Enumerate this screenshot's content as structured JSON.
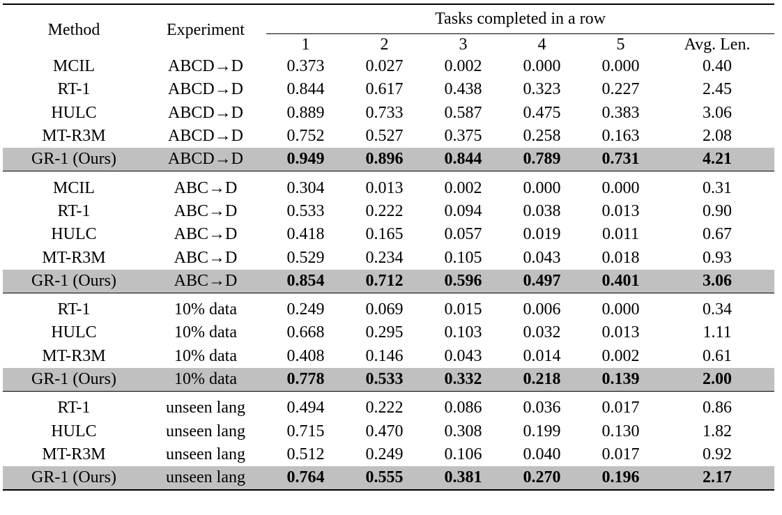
{
  "header": {
    "method": "Method",
    "experiment": "Experiment",
    "group": "Tasks completed in a row",
    "cols": [
      "1",
      "2",
      "3",
      "4",
      "5",
      "Avg. Len."
    ]
  },
  "sections": [
    {
      "rows": [
        {
          "method": "MCIL",
          "experiment": "ABCD→D",
          "values": [
            "0.373",
            "0.027",
            "0.002",
            "0.000",
            "0.000"
          ],
          "avg": "0.40"
        },
        {
          "method": "RT-1",
          "experiment": "ABCD→D",
          "values": [
            "0.844",
            "0.617",
            "0.438",
            "0.323",
            "0.227"
          ],
          "avg": "2.45"
        },
        {
          "method": "HULC",
          "experiment": "ABCD→D",
          "values": [
            "0.889",
            "0.733",
            "0.587",
            "0.475",
            "0.383"
          ],
          "avg": "3.06"
        },
        {
          "method": "MT-R3M",
          "experiment": "ABCD→D",
          "values": [
            "0.752",
            "0.527",
            "0.375",
            "0.258",
            "0.163"
          ],
          "avg": "2.08"
        },
        {
          "method": "GR-1 (Ours)",
          "experiment": "ABCD→D",
          "values": [
            "0.949",
            "0.896",
            "0.844",
            "0.789",
            "0.731"
          ],
          "avg": "4.21"
        }
      ]
    },
    {
      "rows": [
        {
          "method": "MCIL",
          "experiment": "ABC→D",
          "values": [
            "0.304",
            "0.013",
            "0.002",
            "0.000",
            "0.000"
          ],
          "avg": "0.31"
        },
        {
          "method": "RT-1",
          "experiment": "ABC→D",
          "values": [
            "0.533",
            "0.222",
            "0.094",
            "0.038",
            "0.013"
          ],
          "avg": "0.90"
        },
        {
          "method": "HULC",
          "experiment": "ABC→D",
          "values": [
            "0.418",
            "0.165",
            "0.057",
            "0.019",
            "0.011"
          ],
          "avg": "0.67"
        },
        {
          "method": "MT-R3M",
          "experiment": "ABC→D",
          "values": [
            "0.529",
            "0.234",
            "0.105",
            "0.043",
            "0.018"
          ],
          "avg": "0.93"
        },
        {
          "method": "GR-1 (Ours)",
          "experiment": "ABC→D",
          "values": [
            "0.854",
            "0.712",
            "0.596",
            "0.497",
            "0.401"
          ],
          "avg": "3.06"
        }
      ]
    },
    {
      "rows": [
        {
          "method": "RT-1",
          "experiment": "10% data",
          "values": [
            "0.249",
            "0.069",
            "0.015",
            "0.006",
            "0.000"
          ],
          "avg": "0.34"
        },
        {
          "method": "HULC",
          "experiment": "10% data",
          "values": [
            "0.668",
            "0.295",
            "0.103",
            "0.032",
            "0.013"
          ],
          "avg": "1.11"
        },
        {
          "method": "MT-R3M",
          "experiment": "10% data",
          "values": [
            "0.408",
            "0.146",
            "0.043",
            "0.014",
            "0.002"
          ],
          "avg": "0.61"
        },
        {
          "method": "GR-1 (Ours)",
          "experiment": "10% data",
          "values": [
            "0.778",
            "0.533",
            "0.332",
            "0.218",
            "0.139"
          ],
          "avg": "2.00"
        }
      ]
    },
    {
      "rows": [
        {
          "method": "RT-1",
          "experiment": "unseen lang",
          "values": [
            "0.494",
            "0.222",
            "0.086",
            "0.036",
            "0.017"
          ],
          "avg": "0.86"
        },
        {
          "method": "HULC",
          "experiment": "unseen lang",
          "values": [
            "0.715",
            "0.470",
            "0.308",
            "0.199",
            "0.130"
          ],
          "avg": "1.82"
        },
        {
          "method": "MT-R3M",
          "experiment": "unseen lang",
          "values": [
            "0.512",
            "0.249",
            "0.106",
            "0.040",
            "0.017"
          ],
          "avg": "0.92"
        },
        {
          "method": "GR-1 (Ours)",
          "experiment": "unseen lang",
          "values": [
            "0.764",
            "0.555",
            "0.381",
            "0.270",
            "0.196"
          ],
          "avg": "2.17"
        }
      ]
    }
  ]
}
